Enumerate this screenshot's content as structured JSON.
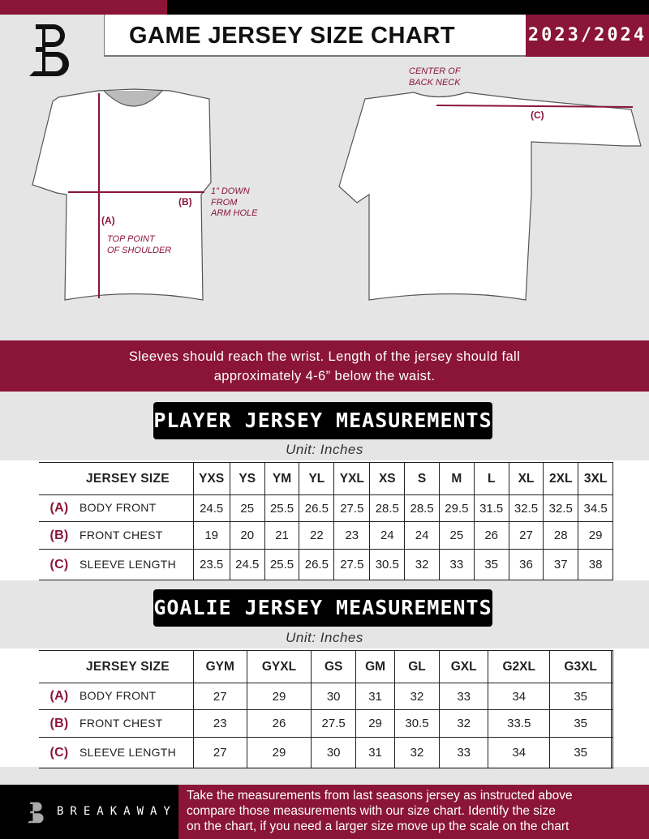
{
  "header": {
    "title": "GAME JERSEY SIZE CHART",
    "season": "2023/2024",
    "brand_color": "#8a1538"
  },
  "diagram": {
    "center_back_neck": [
      "CENTER OF",
      "BACK NECK"
    ],
    "label_a": "(A)",
    "label_b": "(B)",
    "label_c": "(C)",
    "down_note": [
      "1” DOWN",
      "FROM",
      "ARM HOLE"
    ],
    "shoulder_note": [
      "TOP POINT",
      "OF SHOULDER"
    ]
  },
  "banner": [
    "Sleeves should reach the wrist. Length of the jersey should fall",
    "approximately 4-6” below the waist."
  ],
  "player": {
    "title": "PLAYER JERSEY MEASUREMENTS",
    "unit": "Unit: Inches",
    "size_header": "JERSEY SIZE",
    "sizes": [
      "YXS",
      "YS",
      "YM",
      "YL",
      "YXL",
      "XS",
      "S",
      "M",
      "L",
      "XL",
      "2XL",
      "3XL"
    ],
    "rows": [
      {
        "letter": "(A)",
        "label": "BODY FRONT",
        "values": [
          "24.5",
          "25",
          "25.5",
          "26.5",
          "27.5",
          "28.5",
          "28.5",
          "29.5",
          "31.5",
          "32.5",
          "32.5",
          "34.5"
        ]
      },
      {
        "letter": "(B)",
        "label": "FRONT CHEST",
        "values": [
          "19",
          "20",
          "21",
          "22",
          "23",
          "24",
          "24",
          "25",
          "26",
          "27",
          "28",
          "29"
        ]
      },
      {
        "letter": "(C)",
        "label": "SLEEVE LENGTH",
        "values": [
          "23.5",
          "24.5",
          "25.5",
          "26.5",
          "27.5",
          "30.5",
          "32",
          "33",
          "35",
          "36",
          "37",
          "38"
        ]
      }
    ]
  },
  "goalie": {
    "title": "GOALIE JERSEY MEASUREMENTS",
    "unit": "Unit: Inches",
    "size_header": "JERSEY SIZE",
    "sizes": [
      "GYM",
      "GYXL",
      "GS",
      "GM",
      "GL",
      "GXL",
      "G2XL",
      "G3XL",
      ""
    ],
    "rows": [
      {
        "letter": "(A)",
        "label": "BODY FRONT",
        "values": [
          "27",
          "29",
          "30",
          "31",
          "32",
          "33",
          "34",
          "35",
          ""
        ]
      },
      {
        "letter": "(B)",
        "label": "FRONT CHEST",
        "values": [
          "23",
          "26",
          "27.5",
          "29",
          "30.5",
          "32",
          "33.5",
          "35",
          ""
        ]
      },
      {
        "letter": "(C)",
        "label": "SLEEVE LENGTH",
        "values": [
          "27",
          "29",
          "30",
          "31",
          "32",
          "33",
          "34",
          "35",
          ""
        ]
      }
    ]
  },
  "footer": {
    "brand": "BREAKAWAY",
    "text": [
      "Take the measurements from last seasons jersey as instructed above",
      "compare those measurements  with our size chart. Identify the size",
      "on the chart, if you need a larger size move up the scale on the chart"
    ]
  }
}
